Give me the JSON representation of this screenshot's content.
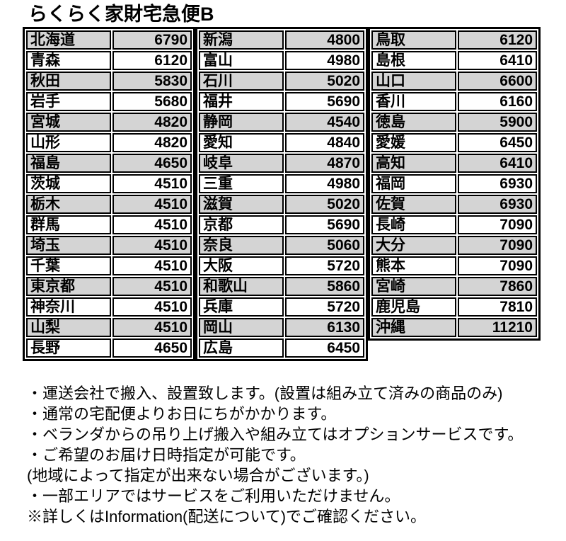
{
  "title": "らくらく家財宅急便B",
  "price_table": {
    "columns": [
      {
        "rows": [
          {
            "name": "北海道",
            "price": "6790"
          },
          {
            "name": "青森",
            "price": "6120"
          },
          {
            "name": "秋田",
            "price": "5830"
          },
          {
            "name": "岩手",
            "price": "5680"
          },
          {
            "name": "宮城",
            "price": "4820"
          },
          {
            "name": "山形",
            "price": "4820"
          },
          {
            "name": "福島",
            "price": "4650"
          },
          {
            "name": "茨城",
            "price": "4510"
          },
          {
            "name": "栃木",
            "price": "4510"
          },
          {
            "name": "群馬",
            "price": "4510"
          },
          {
            "name": "埼玉",
            "price": "4510"
          },
          {
            "name": "千葉",
            "price": "4510"
          },
          {
            "name": "東京都",
            "price": "4510"
          },
          {
            "name": "神奈川",
            "price": "4510"
          },
          {
            "name": "山梨",
            "price": "4510"
          },
          {
            "name": "長野",
            "price": "4650"
          }
        ]
      },
      {
        "rows": [
          {
            "name": "新潟",
            "price": "4800"
          },
          {
            "name": "富山",
            "price": "4980"
          },
          {
            "name": "石川",
            "price": "5020"
          },
          {
            "name": "福井",
            "price": "5690"
          },
          {
            "name": "静岡",
            "price": "4540"
          },
          {
            "name": "愛知",
            "price": "4840"
          },
          {
            "name": "岐阜",
            "price": "4870"
          },
          {
            "name": "三重",
            "price": "4980"
          },
          {
            "name": "滋賀",
            "price": "5020"
          },
          {
            "name": "京都",
            "price": "5690"
          },
          {
            "name": "奈良",
            "price": "5060"
          },
          {
            "name": "大阪",
            "price": "5720"
          },
          {
            "name": "和歌山",
            "price": "5860"
          },
          {
            "name": "兵庫",
            "price": "5720"
          },
          {
            "name": "岡山",
            "price": "6130"
          },
          {
            "name": "広島",
            "price": "6450"
          }
        ]
      },
      {
        "rows": [
          {
            "name": "鳥取",
            "price": "6120"
          },
          {
            "name": "島根",
            "price": "6410"
          },
          {
            "name": "山口",
            "price": "6600"
          },
          {
            "name": "香川",
            "price": "6160"
          },
          {
            "name": "徳島",
            "price": "5900"
          },
          {
            "name": "愛媛",
            "price": "6450"
          },
          {
            "name": "高知",
            "price": "6410"
          },
          {
            "name": "福岡",
            "price": "6930"
          },
          {
            "name": "佐賀",
            "price": "6930"
          },
          {
            "name": "長崎",
            "price": "7090"
          },
          {
            "name": "大分",
            "price": "7090"
          },
          {
            "name": "熊本",
            "price": "7090"
          },
          {
            "name": "宮崎",
            "price": "7860"
          },
          {
            "name": "鹿児島",
            "price": "7810"
          },
          {
            "name": "沖縄",
            "price": "11210"
          }
        ]
      }
    ]
  },
  "notes": [
    "・運送会社で搬入、設置致します。(設置は組み立て済みの商品のみ)",
    "・通常の宅配便よりお日にちがかかります。",
    "・ベランダからの吊り上げ搬入や組み立てはオプションサービスです。",
    "・ご希望のお届け日時指定が可能です。",
    "(地域によって指定が出来ない場合がございます。)",
    "・一部エリアではサービスをご利用いただけません。",
    "※詳しくはInformation(配送について)でご確認ください。"
  ],
  "colors": {
    "row_shade": "#d4d4d4",
    "row_plain": "#ffffff",
    "border": "#000000",
    "text": "#000000",
    "background": "#ffffff"
  }
}
